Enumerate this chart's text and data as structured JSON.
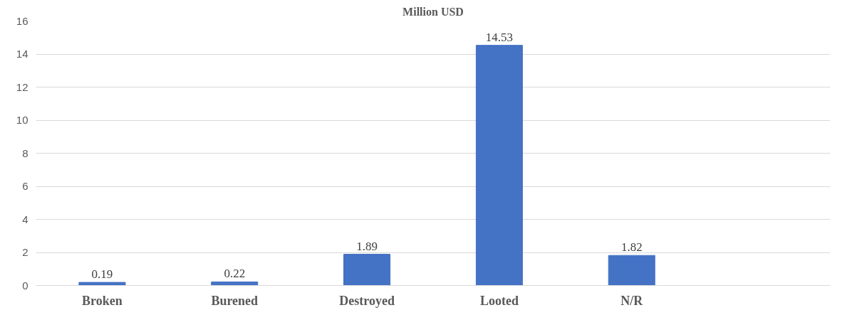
{
  "chart_data": {
    "type": "bar",
    "title": "Million USD",
    "categories": [
      "Broken",
      "Burened",
      "Destroyed",
      "Looted",
      "N/R",
      null
    ],
    "values": [
      0.19,
      0.22,
      1.89,
      14.53,
      1.82,
      null
    ],
    "color": "#4472c4",
    "ylim": [
      0,
      16
    ],
    "yticks": [
      0,
      2,
      4,
      6,
      8,
      10,
      12,
      14,
      16
    ],
    "grid": "y",
    "data_labels": true
  }
}
